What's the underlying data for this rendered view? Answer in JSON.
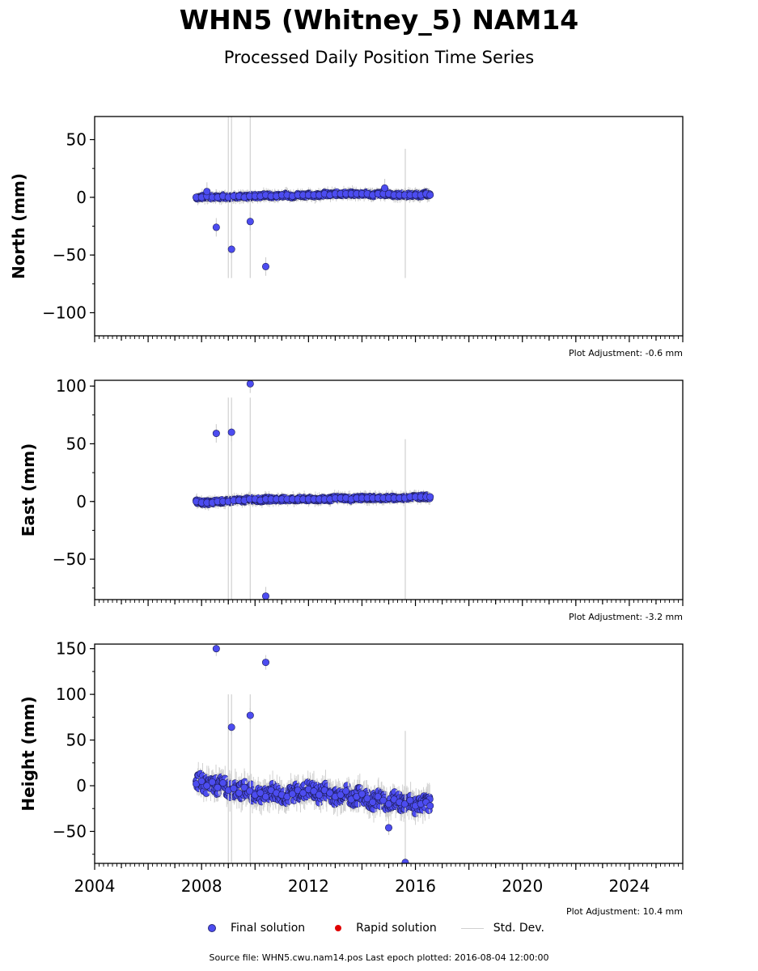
{
  "title": "WHN5 (Whitney_5) NAM14",
  "subtitle": "Processed Daily Position Time Series",
  "source_note": "Source file: WHN5.cwu.nam14.pos  Last epoch plotted: 2016-08-04 12:00:00",
  "legend": {
    "final": "Final solution",
    "rapid": "Rapid solution",
    "std": "Std. Dev."
  },
  "colors": {
    "final": "#4c4cf0",
    "rapid": "#e00000",
    "std": "#d0d0d0"
  },
  "chart_data": [
    {
      "type": "scatter",
      "ylabel": "North (mm)",
      "adjustment": "Plot Adjustment: -0.6 mm",
      "xlim": [
        2004,
        2026
      ],
      "ylim": [
        -120,
        70
      ],
      "yticks": [
        50,
        0,
        -50,
        -100
      ],
      "ytick_labels": [
        "50",
        "0",
        "−50",
        "−100"
      ],
      "xticks": [
        2004,
        2008,
        2012,
        2016,
        2020,
        2024
      ],
      "series": [
        {
          "x": [
            2007.8,
            2008.0,
            2008.2,
            2008.4,
            2008.6,
            2008.8,
            2009.0,
            2009.2,
            2009.4,
            2009.6,
            2009.8,
            2010.0,
            2010.2,
            2010.4,
            2010.6,
            2010.8,
            2011.0,
            2011.2,
            2011.4,
            2011.6,
            2011.8,
            2012.0,
            2012.2,
            2012.4,
            2012.6,
            2012.8,
            2013.0,
            2013.2,
            2013.4,
            2013.6,
            2013.8,
            2014.0,
            2014.2,
            2014.4,
            2014.6,
            2014.8,
            2015.0,
            2015.2,
            2015.4,
            2015.6,
            2015.8,
            2016.0,
            2016.2,
            2016.4,
            2016.55,
            2008.55,
            2009.12,
            2009.82,
            2010.4,
            2008.2,
            2014.85
          ],
          "y": [
            0,
            0,
            1,
            0,
            0,
            1,
            0,
            1,
            1,
            0,
            1,
            1,
            1,
            2,
            1,
            1,
            2,
            2,
            1,
            2,
            2,
            2,
            2,
            2,
            3,
            2,
            3,
            3,
            3,
            3,
            3,
            3,
            3,
            2,
            3,
            3,
            3,
            2,
            2,
            2,
            2,
            2,
            2,
            3,
            2,
            -26,
            -45,
            -21,
            -60,
            5,
            8
          ]
        }
      ]
    },
    {
      "type": "scatter",
      "ylabel": "East (mm)",
      "adjustment": "Plot Adjustment: -3.2 mm",
      "xlim": [
        2004,
        2026
      ],
      "ylim": [
        -85,
        105
      ],
      "yticks": [
        100,
        50,
        0,
        -50
      ],
      "ytick_labels": [
        "100",
        "50",
        "0",
        "−50"
      ],
      "xticks": [
        2004,
        2008,
        2012,
        2016,
        2020,
        2024
      ],
      "series": [
        {
          "x": [
            2007.8,
            2008.0,
            2008.2,
            2008.4,
            2008.6,
            2008.8,
            2009.0,
            2009.2,
            2009.4,
            2009.6,
            2009.8,
            2010.0,
            2010.2,
            2010.4,
            2010.6,
            2010.8,
            2011.0,
            2011.2,
            2011.4,
            2011.6,
            2011.8,
            2012.0,
            2012.2,
            2012.4,
            2012.6,
            2012.8,
            2013.0,
            2013.2,
            2013.4,
            2013.6,
            2013.8,
            2014.0,
            2014.2,
            2014.4,
            2014.6,
            2014.8,
            2015.0,
            2015.2,
            2015.4,
            2015.6,
            2015.8,
            2016.0,
            2016.2,
            2016.4,
            2016.55,
            2008.55,
            2009.12,
            2009.82,
            2010.4
          ],
          "y": [
            0,
            -1,
            -1,
            -1,
            0,
            0,
            0,
            1,
            1,
            1,
            2,
            2,
            1,
            2,
            2,
            2,
            2,
            2,
            2,
            2,
            2,
            2,
            2,
            2,
            2,
            2,
            3,
            3,
            3,
            2,
            3,
            3,
            3,
            3,
            3,
            3,
            3,
            3,
            3,
            3,
            4,
            4,
            4,
            4,
            4,
            59,
            60,
            102,
            -82
          ]
        }
      ]
    },
    {
      "type": "scatter",
      "ylabel": "Height (mm)",
      "adjustment": "Plot Adjustment: 10.4 mm",
      "xlim": [
        2004,
        2026
      ],
      "ylim": [
        -85,
        155
      ],
      "yticks": [
        150,
        100,
        50,
        0,
        -50
      ],
      "ytick_labels": [
        "150",
        "100",
        "50",
        "0",
        "−50"
      ],
      "xticks": [
        2004,
        2008,
        2012,
        2016,
        2020,
        2024
      ],
      "xtick_labels": [
        "2004",
        "2008",
        "2012",
        "2016",
        "2020",
        "2024"
      ],
      "series": [
        {
          "x": [
            2007.8,
            2008.0,
            2008.2,
            2008.4,
            2008.6,
            2008.8,
            2009.0,
            2009.2,
            2009.4,
            2009.6,
            2009.8,
            2010.0,
            2010.2,
            2010.4,
            2010.6,
            2010.8,
            2011.0,
            2011.2,
            2011.4,
            2011.6,
            2011.8,
            2012.0,
            2012.2,
            2012.4,
            2012.6,
            2012.8,
            2013.0,
            2013.2,
            2013.4,
            2013.6,
            2013.8,
            2014.0,
            2014.2,
            2014.4,
            2014.6,
            2014.8,
            2015.0,
            2015.2,
            2015.4,
            2015.6,
            2015.8,
            2016.0,
            2016.2,
            2016.4,
            2016.55,
            2008.55,
            2009.12,
            2009.82,
            2010.4,
            2015.0,
            2015.62
          ],
          "y": [
            2,
            5,
            0,
            4,
            -2,
            3,
            -5,
            -3,
            -8,
            -2,
            -6,
            -10,
            -8,
            -12,
            -5,
            -8,
            -10,
            -12,
            -9,
            -5,
            -8,
            -4,
            -6,
            -10,
            -5,
            -8,
            -12,
            -10,
            -6,
            -15,
            -12,
            -9,
            -14,
            -18,
            -12,
            -16,
            -20,
            -15,
            -18,
            -20,
            -16,
            -22,
            -20,
            -18,
            -22,
            150,
            64,
            77,
            135,
            -46,
            -84
          ]
        }
      ]
    }
  ]
}
